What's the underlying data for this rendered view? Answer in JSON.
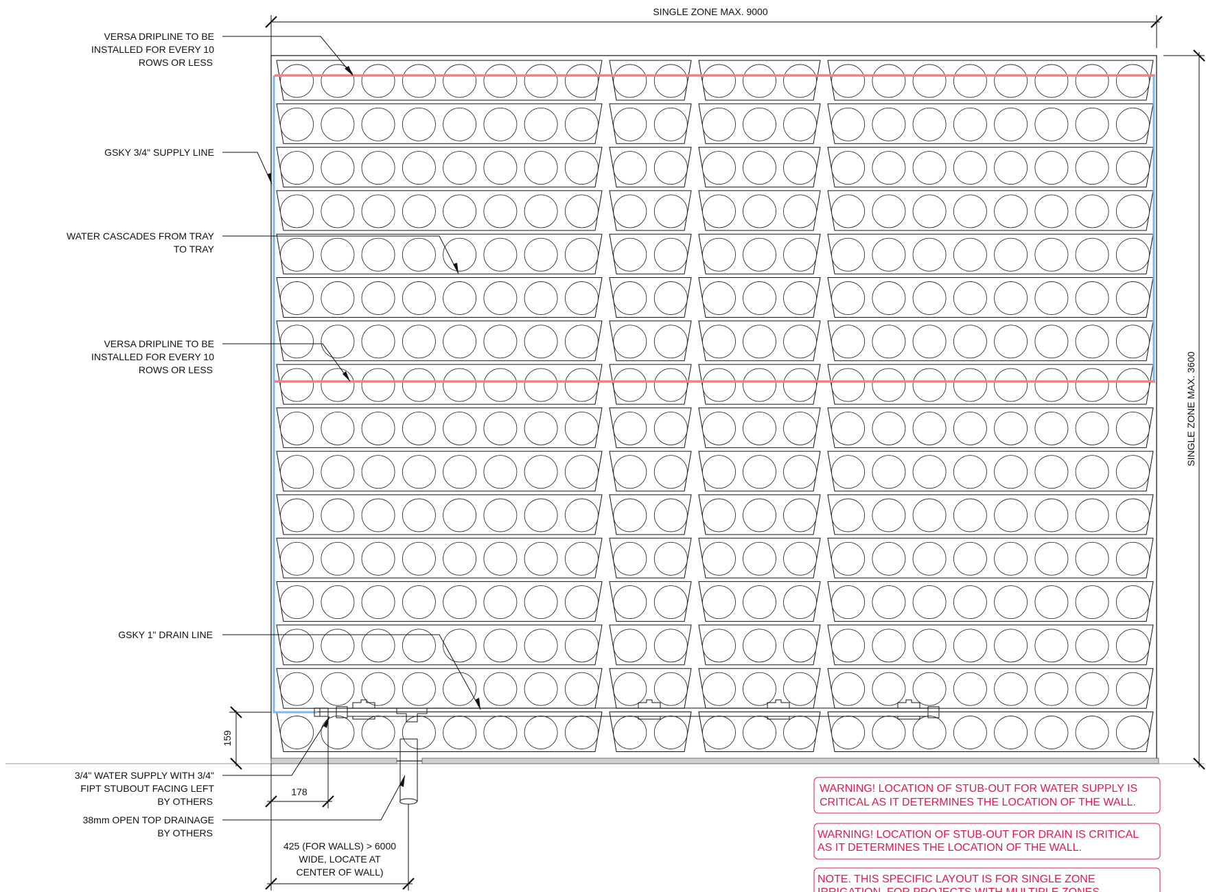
{
  "dimensions": {
    "top_width": "SINGLE ZONE MAX. 9000",
    "right_height": "SINGLE ZONE MAX. 3600",
    "stub_height": "159",
    "stub_offset": "178",
    "drain_offset": [
      "425 (FOR WALLS) > 6000",
      "WIDE, LOCATE AT",
      "CENTER OF WALL)"
    ]
  },
  "callouts": {
    "dripline_top": [
      "VERSA DRIPLINE TO BE",
      "INSTALLED FOR EVERY 10",
      "ROWS OR LESS"
    ],
    "supply_line": [
      "GSKY 3/4\" SUPPLY LINE"
    ],
    "cascade": [
      "WATER CASCADES FROM TRAY",
      "TO TRAY"
    ],
    "dripline_mid": [
      "VERSA DRIPLINE TO BE",
      "INSTALLED FOR EVERY 10",
      "ROWS OR LESS"
    ],
    "drain_line": [
      "GSKY 1\" DRAIN LINE"
    ],
    "water_supply": [
      "3/4\" WATER SUPPLY WITH 3/4\"",
      "FIPT STUBOUT FACING LEFT",
      "BY OTHERS"
    ],
    "open_drain": [
      "38mm OPEN TOP DRAINAGE",
      "BY OTHERS"
    ]
  },
  "warnings": [
    [
      "WARNING! LOCATION OF STUB-OUT FOR WATER SUPPLY IS",
      "CRITICAL AS IT DETERMINES THE LOCATION OF THE WALL."
    ],
    [
      "WARNING! LOCATION OF STUB-OUT FOR  DRAIN IS CRITICAL",
      "AS IT DETERMINES THE LOCATION OF THE WALL."
    ],
    [
      "NOTE. THIS SPECIFIC LAYOUT IS FOR SINGLE ZONE",
      "IRRIGATION. FOR PROJECTS WITH MULTIPLE ZONES"
    ]
  ],
  "wall": {
    "tray_rows": 16,
    "tray_columns": [
      8,
      2,
      3,
      8
    ]
  },
  "colors": {
    "dripline": "#f08080",
    "supply": "#7ab8e8",
    "warning": "#e6194b"
  }
}
